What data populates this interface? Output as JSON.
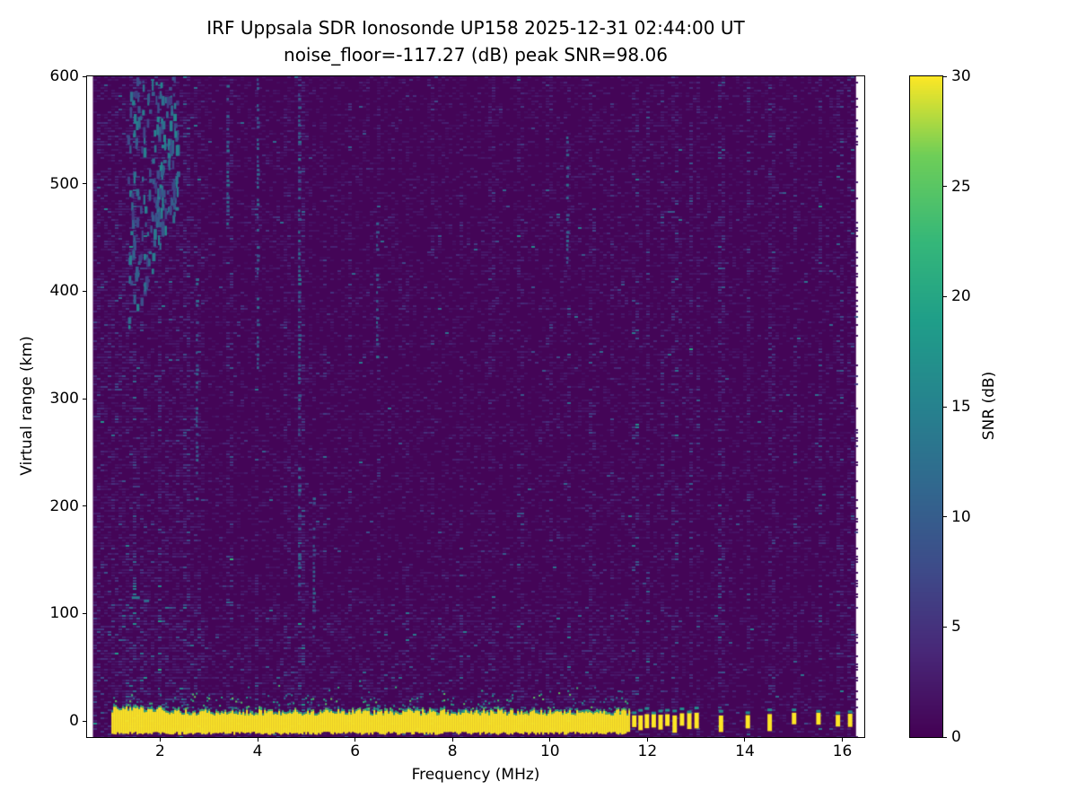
{
  "chart_data": {
    "type": "heatmap",
    "title": "IRF Uppsala SDR Ionosonde UP158 2025-12-31 02:44:00  UT",
    "subtitle": "noise_floor=-117.27 (dB) peak SNR=98.06",
    "station": "UP158",
    "timestamp_ut": "2025-12-31 02:44:00",
    "noise_floor_db": -117.27,
    "peak_snr_db": 98.06,
    "xlabel": "Frequency (MHz)",
    "ylabel": "Virtual range (km)",
    "xlim": [
      0.5,
      16.45
    ],
    "ylim": [
      -15,
      600
    ],
    "xticks": [
      2,
      4,
      6,
      8,
      10,
      12,
      14,
      16
    ],
    "yticks": [
      0,
      100,
      200,
      300,
      400,
      500,
      600
    ],
    "grid": false,
    "colorbar": {
      "label": "SNR (dB)",
      "min": 0,
      "max": 30,
      "ticks": [
        0,
        5,
        10,
        15,
        20,
        25,
        30
      ],
      "colormap": "viridis",
      "position": "right"
    },
    "features": {
      "seed": 1337,
      "data_fmin": 0.62,
      "data_fmax": 16.28,
      "background_snr_db": [
        0,
        3
      ],
      "ground_return": {
        "f0": 1.0,
        "f1": 11.62,
        "r_top": 7,
        "r_bot": -12,
        "snr": 30,
        "fringe_r": 26
      },
      "pulses": [
        11.72,
        11.85,
        11.98,
        12.12,
        12.26,
        12.4,
        12.55,
        12.7,
        12.85,
        13.0,
        13.5,
        14.05,
        14.5,
        15.0,
        15.5,
        15.9,
        16.15
      ],
      "interference_stripes": [
        {
          "f": 1.45,
          "k": 1.8
        },
        {
          "f": 1.95,
          "k": 2.0
        },
        {
          "f": 2.5,
          "k": 1.7
        },
        {
          "f": 3.38,
          "k": 2.0
        },
        {
          "f": 3.95,
          "k": 1.8
        },
        {
          "f": 4.55,
          "k": 1.6
        },
        {
          "f": 4.85,
          "k": 2.6
        },
        {
          "f": 5.35,
          "k": 1.6
        },
        {
          "f": 5.85,
          "k": 1.7
        },
        {
          "f": 6.45,
          "k": 1.9
        },
        {
          "f": 7.05,
          "k": 1.6
        },
        {
          "f": 7.55,
          "k": 1.7
        },
        {
          "f": 8.15,
          "k": 1.6
        },
        {
          "f": 8.75,
          "k": 1.7
        },
        {
          "f": 9.35,
          "k": 1.8
        },
        {
          "f": 9.95,
          "k": 1.6
        },
        {
          "f": 10.35,
          "k": 2.0
        },
        {
          "f": 10.85,
          "k": 1.7
        },
        {
          "f": 11.25,
          "k": 1.8
        },
        {
          "f": 11.72,
          "k": 2.2
        },
        {
          "f": 11.98,
          "k": 2.2
        },
        {
          "f": 12.26,
          "k": 2.2
        },
        {
          "f": 12.55,
          "k": 2.2
        },
        {
          "f": 12.85,
          "k": 2.2
        },
        {
          "f": 13.0,
          "k": 2.0
        },
        {
          "f": 13.5,
          "k": 2.4
        },
        {
          "f": 14.05,
          "k": 2.4
        },
        {
          "f": 14.5,
          "k": 2.2
        },
        {
          "f": 15.0,
          "k": 2.2
        },
        {
          "f": 15.5,
          "k": 2.2
        },
        {
          "f": 15.9,
          "k": 2.0
        },
        {
          "f": 16.15,
          "k": 2.0
        }
      ],
      "tall_streaks": [
        {
          "f": 3.38,
          "r0": 460,
          "r1": 600,
          "v": 9
        },
        {
          "f": 4.85,
          "r0": 120,
          "r1": 600,
          "v": 8
        },
        {
          "f": 4.0,
          "r0": 330,
          "r1": 600,
          "v": 7
        },
        {
          "f": 6.45,
          "r0": 340,
          "r1": 480,
          "v": 8
        },
        {
          "f": 10.35,
          "r0": 420,
          "r1": 545,
          "v": 8
        },
        {
          "f": 2.75,
          "r0": 200,
          "r1": 420,
          "v": 7
        },
        {
          "f": 5.15,
          "r0": 80,
          "r1": 220,
          "v": 7
        }
      ],
      "lowfreq_scatter": {
        "f0": 1.3,
        "f1": 2.35,
        "r0": 360,
        "r1": 600,
        "count": 220,
        "v0": 6,
        "v1": 16
      },
      "marks": [
        {
          "f": 1.5,
          "r": 116,
          "w": 9,
          "v": 14
        },
        {
          "f": 1.72,
          "r": 113,
          "w": 6,
          "v": 12
        }
      ]
    }
  }
}
